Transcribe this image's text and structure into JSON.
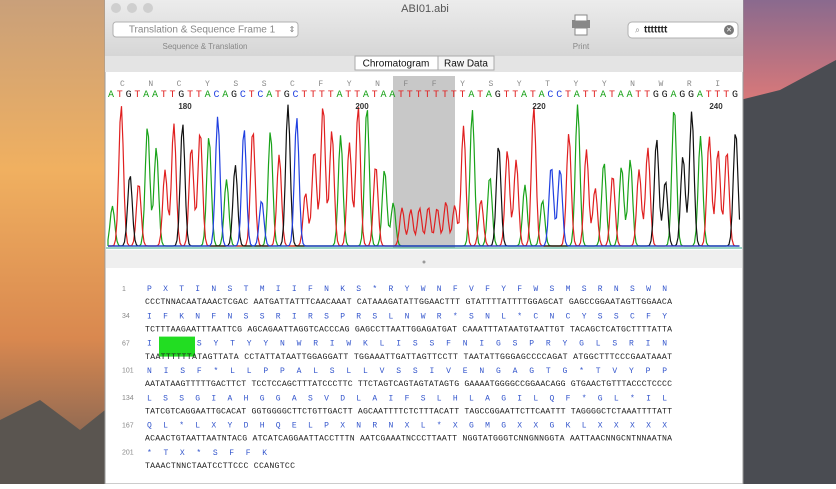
{
  "window": {
    "title": "ABI01.abi"
  },
  "toolbar": {
    "frame_select": "Translation & Sequence Frame 1",
    "frame_caption": "Sequence & Translation",
    "print": "Print",
    "search": "ttttttt"
  },
  "tabs": [
    "Chromatogram",
    "Raw Data"
  ],
  "chromatogram": {
    "translation": "C   N   C   Y   S   S   C   F   Y   N   F   F   Y   S   Y   T   Y   Y   N   W   R   I",
    "bases": "ATGTAATTGTTACAGCTCATGCTTTTATTATAATTTTTTTTATAGTTATACCTATTATAATTGGAGGATTTG",
    "positions": [
      "180",
      "200",
      "220",
      "240"
    ]
  },
  "sequence": {
    "rows": [
      {
        "number": "1",
        "translation": "P X T I N S T M I I F N K S * R Y W N F V F Y F W S M S R N S W N",
        "bases": "CCCTNNACAATAAACTCGAC AATGATTATTTCAACAAAT CATAAAGATATTGGAACTTT GTATTTTATTTTGGAGCAT GAGCCGGAATAGTTGGAACA"
      },
      {
        "number": "34",
        "translation": "I F K N F N S S R I R S P R S L N W R * S N L * C N C Y S S C F Y",
        "bases": "TCTTTAAGAATTTAATTCG AGCAGAATTAGGTCACCCAG GAGCCTTAATTGGAGATGAT CAAATTTATAATGTAATTGT TACAGCTCATGCTTTTATTA"
      },
      {
        "number": "67",
        "translation": "I F Y S Y T Y Y N W R I W K L I S S F N I G S P R Y G L S R I N",
        "bases": "TAATTTTTTATAGTTATA CCTATTATAATTGGAGGATT TGGAAATTGATTAGTTCCTT TAATATTGGGAGCCCCAGAT ATGGCTTTCCCGAATAAAT"
      },
      {
        "number": "101",
        "translation": "N I S F * L L P P A L S L L V S S I V E N G A G T G * T V Y P P",
        "bases": "AATATAAGTTTTTGACTTCT TCCTCCAGCTTTATCCCTTC TTCTAGTCAGTAGTATAGTG GAAAATGGGGCCGGAACAGG GTGAACTGTTTACCCTCCCC"
      },
      {
        "number": "134",
        "translation": "L S S G I A H G G A S V D L A I F S L H L A G I L Q F * G L * I L",
        "bases": "TATCGTCAGGAATTGCACAT GGTGGGGCTTCTGTTGACTT AGCAATTTTCTCTTTACATT TAGCCGGAATTCTTCAATTT TAGGGGCTCTAAATTTTATT"
      },
      {
        "number": "167",
        "translation": "Q L * L X Y D H Q E L P X N R N X L * X G M G X X G K L X X X X X",
        "bases": "ACAACTGTAATTAATNTACG ATCATCAGGAATTACCTTTN AATCGAAATNCCCTTAATT NGGTATGGGTCNNGNNGGTA AATTAACNNGCNTNNAATNA"
      },
      {
        "number": "201",
        "translation": "* T X * S F F K",
        "bases": "TAAACTNNCTAATCCTTCCC CCANGTCC"
      }
    ]
  }
}
